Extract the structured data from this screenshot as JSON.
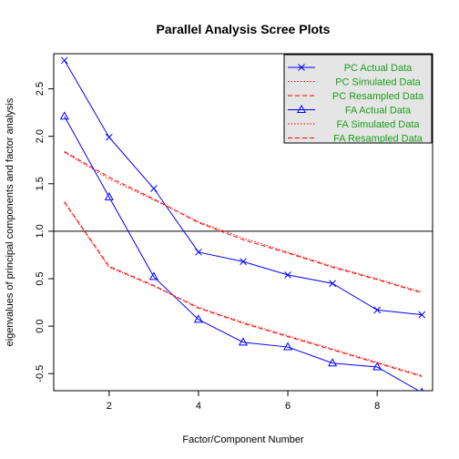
{
  "chart_data": {
    "type": "line",
    "title": "Parallel Analysis Scree Plots",
    "xlabel": "Factor/Component Number",
    "ylabel": "eigenvalues of principal components and factor analysis",
    "xlim": [
      0.76,
      9.24
    ],
    "ylim": [
      -0.68,
      2.87
    ],
    "xticks": [
      2,
      4,
      6,
      8
    ],
    "yticks": [
      -0.5,
      0.0,
      0.5,
      1.0,
      1.5,
      2.0,
      2.5
    ],
    "ytick_labels": [
      "-0.5",
      "0.0",
      "0.5",
      "1.0",
      "1.5",
      "2.0",
      "2.5"
    ],
    "reference_line_y": 1.0,
    "x": [
      1,
      2,
      3,
      4,
      5,
      6,
      7,
      8,
      9
    ],
    "legend_position": "top-right",
    "series": [
      {
        "name": "PC  Actual Data",
        "color": "#0000ff",
        "line": "solid",
        "marker": "x",
        "values": [
          2.8,
          1.99,
          1.45,
          0.78,
          0.68,
          0.54,
          0.45,
          0.17,
          0.12
        ]
      },
      {
        "name": "PC  Simulated Data",
        "color": "#ff0000",
        "line": "dotted",
        "marker": "none",
        "values": [
          1.83,
          1.55,
          1.33,
          1.1,
          0.93,
          0.78,
          0.63,
          0.5,
          0.36
        ]
      },
      {
        "name": "PC  Resampled Data",
        "color": "#ff0000",
        "line": "dashed",
        "marker": "none",
        "values": [
          1.84,
          1.57,
          1.34,
          1.09,
          0.91,
          0.77,
          0.62,
          0.49,
          0.35
        ]
      },
      {
        "name": "FA  Actual Data",
        "color": "#0000ff",
        "line": "solid",
        "marker": "triangle",
        "values": [
          2.21,
          1.36,
          0.52,
          0.07,
          -0.17,
          -0.22,
          -0.39,
          -0.43,
          -0.7
        ]
      },
      {
        "name": "FA  Simulated Data",
        "color": "#ff0000",
        "line": "dotted",
        "marker": "none",
        "values": [
          1.3,
          0.62,
          0.42,
          0.2,
          0.04,
          -0.1,
          -0.24,
          -0.38,
          -0.52
        ]
      },
      {
        "name": "FA  Resampled Data",
        "color": "#ff0000",
        "line": "dashed",
        "marker": "none",
        "values": [
          1.31,
          0.63,
          0.43,
          0.19,
          0.03,
          -0.11,
          -0.25,
          -0.39,
          -0.53
        ]
      }
    ]
  },
  "colors": {
    "legend_background": "#e5e5e5",
    "legend_text": "#1a9e1a"
  }
}
